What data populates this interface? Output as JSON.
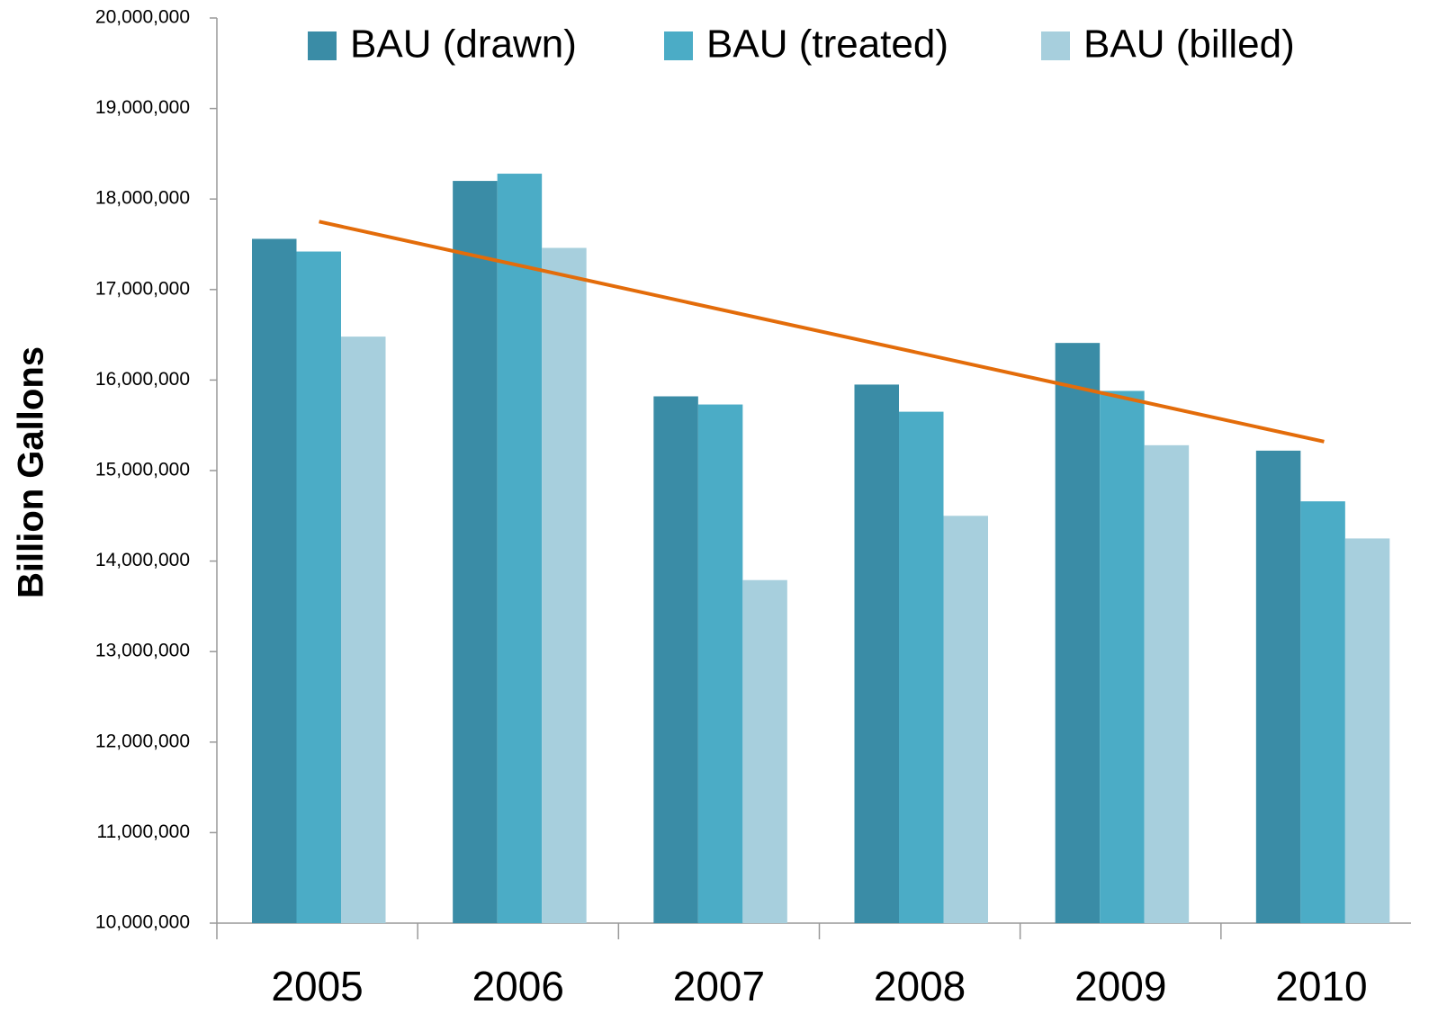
{
  "chart_data": {
    "type": "bar",
    "y_label": "Billion Gallons",
    "categories": [
      "2005",
      "2006",
      "2007",
      "2008",
      "2009",
      "2010"
    ],
    "series": [
      {
        "name": "BAU (drawn)",
        "color": "#3a8ca6",
        "values": [
          17560000,
          18200000,
          15820000,
          15950000,
          16410000,
          15220000
        ]
      },
      {
        "name": "BAU (treated)",
        "color": "#4bacc6",
        "values": [
          17420000,
          18280000,
          15730000,
          15650000,
          15880000,
          14660000
        ]
      },
      {
        "name": "BAU (billed)",
        "color": "#a7cfdd",
        "values": [
          16480000,
          17460000,
          13790000,
          14500000,
          15280000,
          14250000
        ]
      }
    ],
    "trendline": {
      "color": "#e36c0a",
      "start": 17750000,
      "end": 15320000
    },
    "ylim": [
      10000000,
      20000000
    ],
    "yticks": [
      {
        "value": 10000000,
        "label": "10,000,000"
      },
      {
        "value": 11000000,
        "label": "11,000,000"
      },
      {
        "value": 12000000,
        "label": "12,000,000"
      },
      {
        "value": 13000000,
        "label": "13,000,000"
      },
      {
        "value": 14000000,
        "label": "14,000,000"
      },
      {
        "value": 15000000,
        "label": "15,000,000"
      },
      {
        "value": 16000000,
        "label": "16,000,000"
      },
      {
        "value": 17000000,
        "label": "17,000,000"
      },
      {
        "value": 18000000,
        "label": "18,000,000"
      },
      {
        "value": 19000000,
        "label": "19,000,000"
      },
      {
        "value": 20000000,
        "label": "20,000,000"
      }
    ],
    "grid": false,
    "legend": "top"
  }
}
